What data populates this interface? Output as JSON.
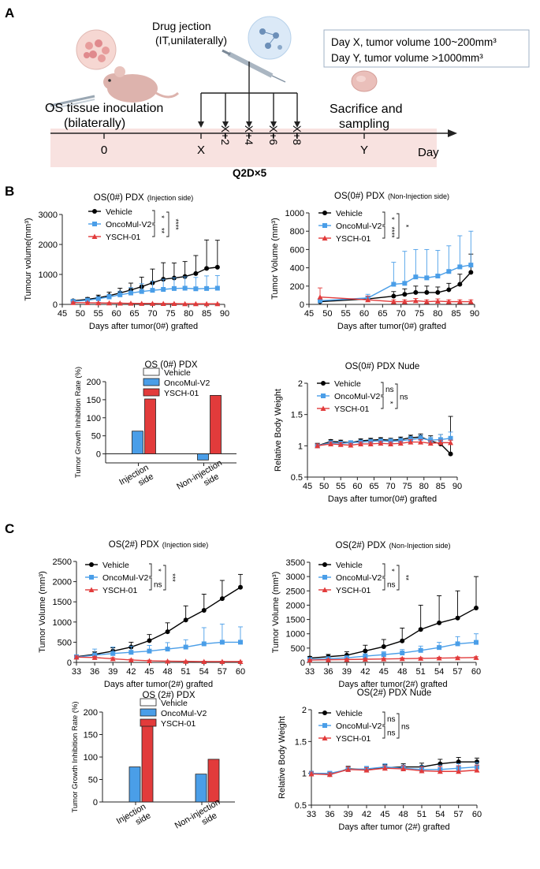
{
  "panel_a": {
    "label": "A",
    "drug_title": "Drug jection",
    "drug_subtitle": "(IT,unilaterally)",
    "info_line1": "Day X, tumor volume 100~200mm³",
    "info_line2": "Day Y, tumor volume >1000mm³",
    "inoculation_line1": "OS tissue inoculation",
    "inoculation_line2": "(bilaterally)",
    "sacrifice_line1": "Sacrifice and",
    "sacrifice_line2": "sampling",
    "timeline_ticks": [
      "0",
      "X",
      "X+2",
      "X+4",
      "X+6",
      "X+8",
      "Y"
    ],
    "day_label": "Day",
    "schedule": "Q2D×5"
  },
  "panel_b": {
    "label": "B"
  },
  "panel_c": {
    "label": "C"
  },
  "chart_data": [
    {
      "id": "b1",
      "type": "line",
      "title": "OS(0#) PDX",
      "subtitle": "(Injection side)",
      "xlabel": "Days after tumor(0#) grafted",
      "ylabel": "Tumour volume(mm³)",
      "xlim": [
        45,
        90
      ],
      "ylim": [
        0,
        3000
      ],
      "xticks": [
        45,
        50,
        55,
        60,
        65,
        70,
        75,
        80,
        85,
        90
      ],
      "yticks": [
        0,
        1000,
        2000,
        3000
      ],
      "series": [
        {
          "name": "Vehicle",
          "color": "#000000",
          "marker": "circle",
          "x": [
            48,
            52,
            55,
            58,
            61,
            64,
            67,
            70,
            73,
            76,
            79,
            82,
            85,
            88
          ],
          "y": [
            120,
            170,
            220,
            290,
            380,
            480,
            590,
            720,
            840,
            880,
            930,
            1030,
            1200,
            1240
          ],
          "err": [
            40,
            60,
            90,
            120,
            160,
            230,
            320,
            460,
            550,
            500,
            500,
            600,
            950,
            900
          ]
        },
        {
          "name": "OncoMul-V2",
          "color": "#4a9ee8",
          "marker": "square",
          "x": [
            48,
            52,
            55,
            58,
            61,
            64,
            67,
            70,
            73,
            76,
            79,
            82,
            85,
            88
          ],
          "y": [
            100,
            140,
            190,
            250,
            320,
            380,
            430,
            470,
            500,
            530,
            540,
            520,
            530,
            540
          ],
          "err": [
            30,
            40,
            60,
            80,
            120,
            180,
            260,
            300,
            340,
            360,
            380,
            380,
            420,
            420
          ]
        },
        {
          "name": "YSCH-01",
          "color": "#e23b3b",
          "marker": "triangle",
          "x": [
            48,
            52,
            55,
            58,
            61,
            64,
            67,
            70,
            73,
            76,
            79,
            82,
            85,
            88
          ],
          "y": [
            60,
            55,
            50,
            45,
            40,
            35,
            30,
            30,
            25,
            25,
            20,
            20,
            20,
            20
          ],
          "err": [
            20,
            20,
            15,
            15,
            15,
            10,
            10,
            10,
            10,
            10,
            10,
            10,
            10,
            10
          ]
        }
      ],
      "significance": [
        "*",
        "**",
        "****"
      ]
    },
    {
      "id": "b2",
      "type": "line",
      "title": "OS(0#) PDX",
      "subtitle": "(Non-Injection side)",
      "xlabel": "Days after tumor(0#) grafted",
      "ylabel": "Tumor Volume (mm³)",
      "xlim": [
        45,
        90
      ],
      "ylim": [
        0,
        1000
      ],
      "xticks": [
        45,
        50,
        55,
        60,
        65,
        70,
        75,
        80,
        85,
        90
      ],
      "yticks": [
        0,
        200,
        400,
        600,
        800,
        1000
      ],
      "series": [
        {
          "name": "Vehicle",
          "color": "#000000",
          "marker": "circle",
          "x": [
            48,
            61,
            68,
            71,
            74,
            77,
            80,
            83,
            86,
            89
          ],
          "y": [
            30,
            60,
            90,
            110,
            130,
            130,
            130,
            160,
            220,
            350
          ],
          "err": [
            20,
            30,
            50,
            60,
            70,
            70,
            60,
            70,
            110,
            200
          ]
        },
        {
          "name": "OncoMul-V2",
          "color": "#4a9ee8",
          "marker": "square",
          "x": [
            48,
            61,
            68,
            71,
            74,
            77,
            80,
            83,
            86,
            89
          ],
          "y": [
            40,
            70,
            220,
            230,
            300,
            290,
            310,
            360,
            410,
            430
          ],
          "err": [
            20,
            40,
            240,
            350,
            300,
            310,
            280,
            280,
            340,
            370
          ]
        },
        {
          "name": "YSCH-01",
          "color": "#e23b3b",
          "marker": "triangle",
          "x": [
            48,
            61,
            68,
            71,
            74,
            77,
            80,
            83,
            86,
            89
          ],
          "y": [
            80,
            50,
            30,
            30,
            40,
            30,
            35,
            30,
            30,
            30
          ],
          "err": [
            100,
            40,
            20,
            20,
            25,
            20,
            25,
            20,
            20,
            20
          ]
        }
      ],
      "significance": [
        "*",
        "****",
        "*"
      ]
    },
    {
      "id": "b3",
      "type": "bar",
      "title": "OS (0#) PDX",
      "ylabel": "Tumor Growth Inhibition Rate (%)",
      "categories": [
        "Injection side",
        "Non-injection side"
      ],
      "ylim": [
        -25,
        200
      ],
      "yticks": [
        0,
        50,
        100,
        150,
        200
      ],
      "series": [
        {
          "name": "Vehicle",
          "color": "#ffffff",
          "values": [
            0,
            0
          ]
        },
        {
          "name": "OncoMul-V2",
          "color": "#4a9ee8",
          "values": [
            63,
            -17
          ]
        },
        {
          "name": "YSCH-01",
          "color": "#e23b3b",
          "values": [
            152,
            162
          ]
        }
      ]
    },
    {
      "id": "b4",
      "type": "line",
      "title": "OS(0#) PDX Nude",
      "xlabel": "Days after tumor(0#) grafted",
      "ylabel": "Relative Body Weight",
      "xlim": [
        45,
        90
      ],
      "ylim": [
        0.5,
        2.0
      ],
      "xticks": [
        45,
        50,
        55,
        60,
        65,
        70,
        75,
        80,
        85,
        90
      ],
      "yticks": [
        0.5,
        1.0,
        1.5,
        2.0
      ],
      "series": [
        {
          "name": "Vehicle",
          "color": "#000000",
          "marker": "circle",
          "x": [
            48,
            52,
            55,
            58,
            61,
            64,
            67,
            70,
            73,
            76,
            79,
            82,
            85,
            88
          ],
          "y": [
            1.0,
            1.07,
            1.06,
            1.05,
            1.08,
            1.09,
            1.1,
            1.09,
            1.1,
            1.13,
            1.14,
            1.08,
            1.03,
            0.87
          ],
          "err": [
            0.04,
            0.03,
            0.03,
            0.03,
            0.03,
            0.03,
            0.03,
            0.03,
            0.04,
            0.04,
            0.05,
            0.08,
            0.15,
            0.6
          ]
        },
        {
          "name": "OncoMul-V2",
          "color": "#4a9ee8",
          "marker": "square",
          "x": [
            48,
            52,
            55,
            58,
            61,
            64,
            67,
            70,
            73,
            76,
            79,
            82,
            85,
            88
          ],
          "y": [
            1.0,
            1.05,
            1.04,
            1.05,
            1.06,
            1.07,
            1.08,
            1.07,
            1.08,
            1.1,
            1.12,
            1.09,
            1.1,
            1.12
          ],
          "err": [
            0.03,
            0.03,
            0.03,
            0.03,
            0.03,
            0.03,
            0.03,
            0.04,
            0.04,
            0.05,
            0.05,
            0.05,
            0.08,
            0.1
          ]
        },
        {
          "name": "YSCH-01",
          "color": "#e23b3b",
          "marker": "triangle",
          "x": [
            48,
            52,
            55,
            58,
            61,
            64,
            67,
            70,
            73,
            76,
            79,
            82,
            85,
            88
          ],
          "y": [
            1.0,
            1.03,
            1.02,
            1.01,
            1.03,
            1.03,
            1.04,
            1.03,
            1.04,
            1.06,
            1.06,
            1.04,
            1.05,
            1.05
          ],
          "err": [
            0.03,
            0.03,
            0.03,
            0.03,
            0.03,
            0.03,
            0.03,
            0.03,
            0.03,
            0.04,
            0.04,
            0.04,
            0.04,
            0.04
          ]
        }
      ],
      "significance": [
        "ns",
        "*",
        "ns"
      ]
    },
    {
      "id": "c1",
      "type": "line",
      "title": "OS(2#) PDX",
      "subtitle": "(Injection side)",
      "xlabel": "Days after tumor(2#) grafted",
      "ylabel": "Tumor Volume (mm³)",
      "xlim": [
        33,
        60
      ],
      "ylim": [
        0,
        2500
      ],
      "xticks": [
        33,
        36,
        39,
        42,
        45,
        48,
        51,
        54,
        57,
        60
      ],
      "yticks": [
        0,
        500,
        1000,
        1500,
        2000,
        2500
      ],
      "series": [
        {
          "name": "Vehicle",
          "color": "#000000",
          "marker": "circle",
          "x": [
            33,
            36,
            39,
            42,
            45,
            48,
            51,
            54,
            57,
            60
          ],
          "y": [
            140,
            200,
            280,
            380,
            540,
            760,
            1050,
            1290,
            1580,
            1860
          ],
          "err": [
            40,
            60,
            80,
            120,
            150,
            220,
            350,
            400,
            450,
            320
          ]
        },
        {
          "name": "OncoMul-V2",
          "color": "#4a9ee8",
          "marker": "square",
          "x": [
            33,
            36,
            39,
            42,
            45,
            48,
            51,
            54,
            57,
            60
          ],
          "y": [
            130,
            180,
            220,
            250,
            280,
            330,
            380,
            460,
            500,
            500
          ],
          "err": [
            60,
            150,
            160,
            150,
            140,
            160,
            180,
            400,
            450,
            380
          ]
        },
        {
          "name": "YSCH-01",
          "color": "#e23b3b",
          "marker": "triangle",
          "x": [
            33,
            36,
            39,
            42,
            45,
            48,
            51,
            54,
            57,
            60
          ],
          "y": [
            130,
            120,
            90,
            60,
            40,
            30,
            25,
            20,
            20,
            20
          ],
          "err": [
            30,
            30,
            30,
            20,
            15,
            10,
            10,
            10,
            10,
            10
          ]
        }
      ],
      "significance": [
        "*",
        "ns",
        "***"
      ]
    },
    {
      "id": "c2",
      "type": "line",
      "title": "OS(2#) PDX",
      "subtitle": "(Non-Injection side)",
      "xlabel": "Days after tumor(2#)  grafted",
      "ylabel": "Tumor Volume (mm³)",
      "xlim": [
        33,
        60
      ],
      "ylim": [
        0,
        3500
      ],
      "xticks": [
        33,
        36,
        39,
        42,
        45,
        48,
        51,
        54,
        57,
        60
      ],
      "yticks": [
        0,
        500,
        1000,
        1500,
        2000,
        2500,
        3000,
        3500
      ],
      "series": [
        {
          "name": "Vehicle",
          "color": "#000000",
          "marker": "circle",
          "x": [
            33,
            36,
            39,
            42,
            45,
            48,
            51,
            54,
            57,
            60
          ],
          "y": [
            150,
            200,
            250,
            400,
            550,
            750,
            1150,
            1380,
            1550,
            1900
          ],
          "err": [
            60,
            80,
            120,
            200,
            250,
            450,
            850,
            950,
            950,
            1100
          ]
        },
        {
          "name": "OncoMul-V2",
          "color": "#4a9ee8",
          "marker": "square",
          "x": [
            33,
            36,
            39,
            42,
            45,
            48,
            51,
            54,
            57,
            60
          ],
          "y": [
            100,
            130,
            160,
            220,
            270,
            330,
            420,
            520,
            650,
            700
          ],
          "err": [
            40,
            50,
            60,
            80,
            100,
            120,
            150,
            180,
            250,
            300
          ]
        },
        {
          "name": "YSCH-01",
          "color": "#e23b3b",
          "marker": "triangle",
          "x": [
            33,
            36,
            39,
            42,
            45,
            48,
            51,
            54,
            57,
            60
          ],
          "y": [
            80,
            90,
            100,
            110,
            120,
            130,
            140,
            150,
            160,
            170
          ],
          "err": [
            20,
            20,
            25,
            25,
            25,
            30,
            30,
            30,
            30,
            30
          ]
        }
      ],
      "significance": [
        "*",
        "ns",
        "**"
      ]
    },
    {
      "id": "c3",
      "type": "bar",
      "title": "OS (2#) PDX",
      "ylabel": "Tumor Growth Inhibition Rate (%)",
      "categories": [
        "Injection side",
        "Non-injection side"
      ],
      "ylim": [
        0,
        200
      ],
      "yticks": [
        0,
        50,
        100,
        150,
        200
      ],
      "series": [
        {
          "name": "Vehicle",
          "color": "#ffffff",
          "values": [
            0,
            0
          ]
        },
        {
          "name": "OncoMul-V2",
          "color": "#4a9ee8",
          "values": [
            78,
            62
          ]
        },
        {
          "name": "YSCH-01",
          "color": "#e23b3b",
          "values": [
            170,
            95
          ]
        }
      ]
    },
    {
      "id": "c4",
      "type": "line",
      "title": "OS(2#) PDX Nude",
      "xlabel": "Days after tumor (2#) grafted",
      "ylabel": "Relative Body Weight",
      "xlim": [
        33,
        60
      ],
      "ylim": [
        0.5,
        2.0
      ],
      "xticks": [
        33,
        36,
        39,
        42,
        45,
        48,
        51,
        54,
        57,
        60
      ],
      "yticks": [
        0.5,
        1.0,
        1.5,
        2.0
      ],
      "series": [
        {
          "name": "Vehicle",
          "color": "#000000",
          "marker": "circle",
          "x": [
            33,
            36,
            39,
            42,
            45,
            48,
            51,
            54,
            57,
            60
          ],
          "y": [
            1.0,
            0.98,
            1.07,
            1.06,
            1.09,
            1.1,
            1.1,
            1.15,
            1.18,
            1.18
          ],
          "err": [
            0.03,
            0.03,
            0.04,
            0.04,
            0.05,
            0.05,
            0.06,
            0.07,
            0.07,
            0.06
          ]
        },
        {
          "name": "OncoMul-V2",
          "color": "#4a9ee8",
          "marker": "square",
          "x": [
            33,
            36,
            39,
            42,
            45,
            48,
            51,
            54,
            57,
            60
          ],
          "y": [
            1.0,
            1.0,
            1.06,
            1.07,
            1.1,
            1.08,
            1.06,
            1.06,
            1.08,
            1.1
          ],
          "err": [
            0.03,
            0.03,
            0.04,
            0.04,
            0.05,
            0.05,
            0.06,
            0.07,
            0.07,
            0.07
          ]
        },
        {
          "name": "YSCH-01",
          "color": "#e23b3b",
          "marker": "triangle",
          "x": [
            33,
            36,
            39,
            42,
            45,
            48,
            51,
            54,
            57,
            60
          ],
          "y": [
            0.99,
            0.98,
            1.06,
            1.05,
            1.08,
            1.07,
            1.04,
            1.03,
            1.03,
            1.05
          ],
          "err": [
            0.03,
            0.03,
            0.04,
            0.04,
            0.04,
            0.05,
            0.06,
            0.08,
            0.09,
            0.08
          ]
        }
      ],
      "significance": [
        "ns",
        "ns",
        "ns"
      ]
    }
  ]
}
